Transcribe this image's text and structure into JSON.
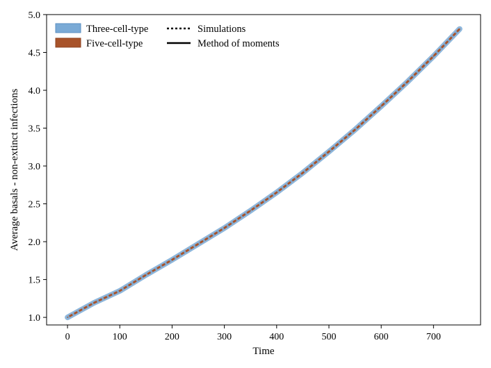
{
  "chart_data": {
    "type": "line",
    "title": "",
    "xlabel": "Time",
    "ylabel": "Average basals - non-extinct infections",
    "xlim": [
      -40,
      790
    ],
    "ylim": [
      0.9,
      5.0
    ],
    "x_ticks": [
      0,
      100,
      200,
      300,
      400,
      500,
      600,
      700
    ],
    "y_ticks": [
      1.0,
      1.5,
      2.0,
      2.5,
      3.0,
      3.5,
      4.0,
      4.5,
      5.0
    ],
    "x_tick_labels": [
      "0",
      "100",
      "200",
      "300",
      "400",
      "500",
      "600",
      "700"
    ],
    "y_tick_labels": [
      "1.0",
      "1.5",
      "2.0",
      "2.5",
      "3.0",
      "3.5",
      "4.0",
      "4.5",
      "5.0"
    ],
    "grid": false,
    "legend_placement": "top-left",
    "legend": {
      "models": [
        {
          "label": "Three-cell-type",
          "color": "#7aaad6"
        },
        {
          "label": "Five-cell-type",
          "color": "#a8532a"
        }
      ],
      "line_styles": [
        {
          "label": "Simulations",
          "style": "dotted"
        },
        {
          "label": "Method of moments",
          "style": "solid"
        }
      ]
    },
    "x": [
      0,
      50,
      100,
      150,
      200,
      250,
      300,
      350,
      400,
      450,
      500,
      550,
      600,
      650,
      700,
      750
    ],
    "series": [
      {
        "name": "Three-cell-type",
        "color": "#7aaad6",
        "values": [
          1.0,
          1.19,
          1.35,
          1.56,
          1.76,
          1.97,
          2.18,
          2.41,
          2.65,
          2.91,
          3.19,
          3.48,
          3.79,
          4.11,
          4.45,
          4.81
        ]
      },
      {
        "name": "Five-cell-type",
        "color": "#a8532a",
        "values": [
          1.0,
          1.19,
          1.35,
          1.56,
          1.76,
          1.97,
          2.18,
          2.41,
          2.65,
          2.91,
          3.19,
          3.48,
          3.79,
          4.11,
          4.45,
          4.81
        ]
      }
    ]
  }
}
